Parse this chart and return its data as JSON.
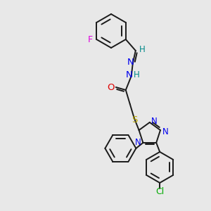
{
  "bg_color": "#e8e8e8",
  "bond_color": "#1a1a1a",
  "atom_colors": {
    "N": "#0000ee",
    "O": "#dd0000",
    "S": "#bbaa00",
    "F": "#dd00dd",
    "Cl": "#00aa00",
    "H": "#008888",
    "C": "#1a1a1a"
  },
  "font_size": 8.5,
  "fig_size": [
    3.0,
    3.0
  ],
  "dpi": 100
}
